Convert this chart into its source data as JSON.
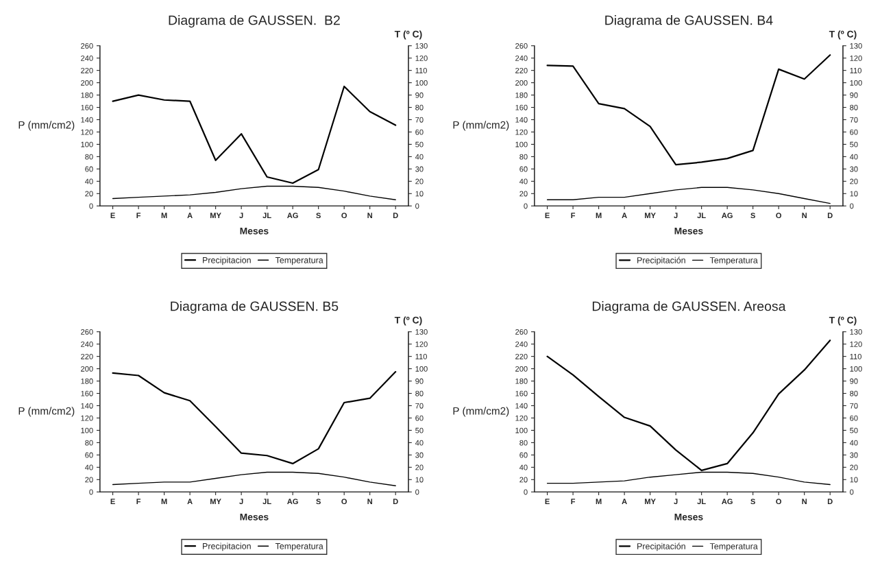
{
  "chart_data": [
    {
      "type": "line",
      "title": "Diagrama de GAUSSEN.  B2",
      "xlabel": "Meses",
      "ylabel": "P (mm/cm2)",
      "y2label": "T (º C)",
      "categories": [
        "E",
        "F",
        "M",
        "A",
        "MY",
        "J",
        "JL",
        "AG",
        "S",
        "O",
        "N",
        "D"
      ],
      "ylim": [
        0,
        260
      ],
      "yticks": [
        0,
        20,
        40,
        60,
        80,
        100,
        120,
        140,
        160,
        180,
        200,
        220,
        240,
        260
      ],
      "y2lim": [
        0,
        130
      ],
      "y2ticks": [
        0,
        10,
        20,
        30,
        40,
        50,
        60,
        70,
        80,
        90,
        100,
        110,
        120,
        130
      ],
      "legend": "bottom",
      "grid": false,
      "series": [
        {
          "name": "Precipitacion",
          "color": "#000000",
          "values": [
            170,
            180,
            172,
            170,
            74,
            117,
            47,
            37,
            59,
            194,
            153,
            131
          ]
        },
        {
          "name": "Temperatura",
          "color": "#000000",
          "axis": "y2",
          "values": [
            6,
            7,
            8,
            9,
            11,
            14,
            16,
            16,
            15,
            12,
            8,
            5
          ]
        }
      ]
    },
    {
      "type": "line",
      "title": "Diagrama de GAUSSEN. B4",
      "xlabel": "Meses",
      "ylabel": "P (mm/cm2)",
      "y2label": "T (º C)",
      "categories": [
        "E",
        "F",
        "M",
        "A",
        "MY",
        "J",
        "JL",
        "AG",
        "S",
        "O",
        "N",
        "D"
      ],
      "ylim": [
        0,
        260
      ],
      "yticks": [
        0,
        20,
        40,
        60,
        80,
        100,
        120,
        140,
        160,
        180,
        200,
        220,
        240,
        260
      ],
      "y2lim": [
        0,
        130
      ],
      "y2ticks": [
        0,
        10,
        20,
        30,
        40,
        50,
        60,
        70,
        80,
        90,
        100,
        110,
        120,
        130
      ],
      "legend": "bottom",
      "grid": false,
      "series": [
        {
          "name": "Precipitación",
          "color": "#000000",
          "values": [
            228,
            227,
            166,
            158,
            129,
            67,
            71,
            77,
            90,
            222,
            206,
            245
          ]
        },
        {
          "name": "Temperatura",
          "color": "#000000",
          "axis": "y2",
          "values": [
            5,
            5,
            7,
            7,
            10,
            13,
            15,
            15,
            13,
            10,
            6,
            2
          ]
        }
      ]
    },
    {
      "type": "line",
      "title": "Diagrama de GAUSSEN. B5",
      "xlabel": "Meses",
      "ylabel": "P (mm/cm2)",
      "y2label": "T (º C)",
      "categories": [
        "E",
        "F",
        "M",
        "A",
        "MY",
        "J",
        "JL",
        "AG",
        "S",
        "O",
        "N",
        "D"
      ],
      "ylim": [
        0,
        260
      ],
      "yticks": [
        0,
        20,
        40,
        60,
        80,
        100,
        120,
        140,
        160,
        180,
        200,
        220,
        240,
        260
      ],
      "y2lim": [
        0,
        130
      ],
      "y2ticks": [
        0,
        10,
        20,
        30,
        40,
        50,
        60,
        70,
        80,
        90,
        100,
        110,
        120,
        130
      ],
      "legend": "bottom",
      "grid": false,
      "series": [
        {
          "name": "Precipitacion",
          "color": "#000000",
          "values": [
            193,
            189,
            161,
            148,
            106,
            63,
            59,
            46,
            70,
            145,
            152,
            195
          ]
        },
        {
          "name": "Temperatura",
          "color": "#000000",
          "axis": "y2",
          "values": [
            6,
            7,
            8,
            8,
            11,
            14,
            16,
            16,
            15,
            12,
            8,
            5
          ]
        }
      ]
    },
    {
      "type": "line",
      "title": "Diagrama de GAUSSEN. Areosa",
      "xlabel": "Meses",
      "ylabel": "P (mm/cm2)",
      "y2label": "T (º C)",
      "categories": [
        "E",
        "F",
        "M",
        "A",
        "MY",
        "J",
        "JL",
        "AG",
        "S",
        "O",
        "N",
        "D"
      ],
      "ylim": [
        0,
        260
      ],
      "yticks": [
        0,
        20,
        40,
        60,
        80,
        100,
        120,
        140,
        160,
        180,
        200,
        220,
        240,
        260
      ],
      "y2lim": [
        0,
        130
      ],
      "y2ticks": [
        0,
        10,
        20,
        30,
        40,
        50,
        60,
        70,
        80,
        90,
        100,
        110,
        120,
        130
      ],
      "legend": "bottom",
      "grid": false,
      "series": [
        {
          "name": "Precipitación",
          "color": "#000000",
          "values": [
            220,
            190,
            155,
            121,
            107,
            68,
            35,
            46,
            96,
            159,
            198,
            246
          ]
        },
        {
          "name": "Temperatura",
          "color": "#000000",
          "axis": "y2",
          "values": [
            7,
            7,
            8,
            9,
            12,
            14,
            16,
            16,
            15,
            12,
            8,
            6
          ]
        }
      ]
    }
  ]
}
